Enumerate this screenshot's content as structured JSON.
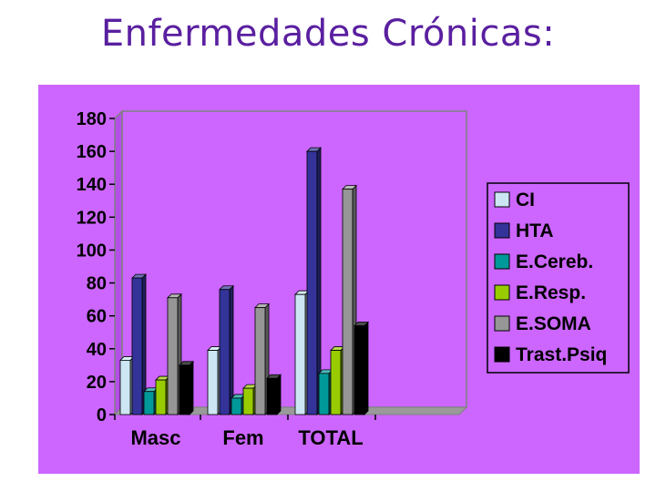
{
  "title": "Enfermedades Crónicas:",
  "chart_data": {
    "type": "bar",
    "style": "3d-clustered",
    "title": "",
    "categories": [
      "Masc",
      "Fem",
      "TOTAL"
    ],
    "ylim": [
      0,
      180
    ],
    "yticks": [
      0,
      20,
      40,
      60,
      80,
      100,
      120,
      140,
      160,
      180
    ],
    "grid": false,
    "legend_position": "right",
    "series": [
      {
        "name": "CI",
        "color": "#cce6f4",
        "values": [
          33,
          39,
          73
        ]
      },
      {
        "name": "HTA",
        "color": "#333399",
        "values": [
          83,
          76,
          160
        ]
      },
      {
        "name": "E.Cereb.",
        "color": "#009999",
        "values": [
          14,
          10,
          25
        ]
      },
      {
        "name": "E.Resp.",
        "color": "#99cc00",
        "values": [
          21,
          16,
          39
        ]
      },
      {
        "name": "E.SOMA",
        "color": "#969696",
        "values": [
          71,
          65,
          137
        ]
      },
      {
        "name": "Trast.Psiq",
        "color": "#000000",
        "values": [
          30,
          22,
          54
        ]
      }
    ]
  }
}
